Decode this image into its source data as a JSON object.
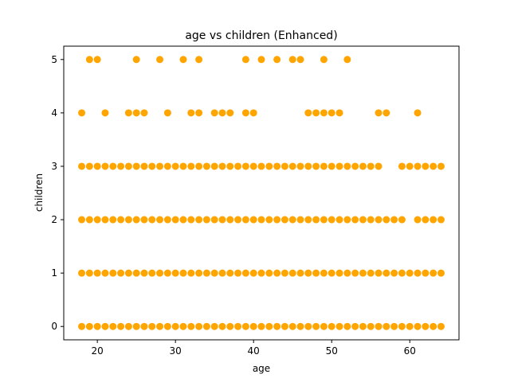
{
  "chart_data": {
    "type": "scatter",
    "title": "age vs children (Enhanced)",
    "xlabel": "age",
    "ylabel": "children",
    "xlim": [
      15.7,
      66.3
    ],
    "ylim": [
      -0.25,
      5.25
    ],
    "xticks": [
      20,
      30,
      40,
      50,
      60
    ],
    "yticks": [
      0,
      1,
      2,
      3,
      4,
      5
    ],
    "grid": false,
    "marker_color": "#FFA500",
    "series": [
      {
        "points_by_children": {
          "0": [
            18,
            19,
            20,
            21,
            22,
            23,
            24,
            25,
            26,
            27,
            28,
            29,
            30,
            31,
            32,
            33,
            34,
            35,
            36,
            37,
            38,
            39,
            40,
            41,
            42,
            43,
            44,
            45,
            46,
            47,
            48,
            49,
            50,
            51,
            52,
            53,
            54,
            55,
            56,
            57,
            58,
            59,
            60,
            61,
            62,
            63,
            64
          ],
          "1": [
            18,
            19,
            20,
            21,
            22,
            23,
            24,
            25,
            26,
            27,
            28,
            29,
            30,
            31,
            32,
            33,
            34,
            35,
            36,
            37,
            38,
            39,
            40,
            41,
            42,
            43,
            44,
            45,
            46,
            47,
            48,
            49,
            50,
            51,
            52,
            53,
            54,
            55,
            56,
            57,
            58,
            59,
            60,
            61,
            62,
            63,
            64
          ],
          "2": [
            18,
            19,
            20,
            21,
            22,
            23,
            24,
            25,
            26,
            27,
            28,
            29,
            30,
            31,
            32,
            33,
            34,
            35,
            36,
            37,
            38,
            39,
            40,
            41,
            42,
            43,
            44,
            45,
            46,
            47,
            48,
            49,
            50,
            51,
            52,
            53,
            54,
            55,
            56,
            57,
            58,
            59,
            61,
            62,
            63,
            64
          ],
          "3": [
            18,
            19,
            20,
            21,
            22,
            23,
            24,
            25,
            26,
            27,
            28,
            29,
            30,
            31,
            32,
            33,
            34,
            35,
            36,
            37,
            38,
            39,
            40,
            41,
            42,
            43,
            44,
            45,
            46,
            47,
            48,
            49,
            50,
            51,
            52,
            53,
            54,
            55,
            56,
            59,
            60,
            61,
            62,
            63,
            64
          ],
          "4": [
            18,
            21,
            24,
            25,
            26,
            29,
            32,
            33,
            35,
            36,
            37,
            39,
            40,
            47,
            48,
            49,
            50,
            51,
            56,
            57,
            61
          ],
          "5": [
            19,
            20,
            25,
            28,
            31,
            33,
            39,
            41,
            43,
            45,
            46,
            49,
            52
          ]
        }
      }
    ]
  }
}
